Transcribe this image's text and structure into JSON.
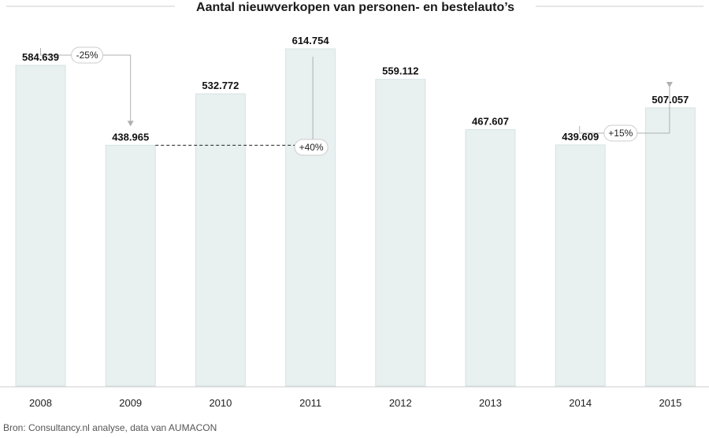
{
  "chart_data": {
    "type": "bar",
    "title": "Aantal nieuwverkopen van personen- en bestelauto’s",
    "categories": [
      "2008",
      "2009",
      "2010",
      "2011",
      "2012",
      "2013",
      "2014",
      "2015"
    ],
    "values": [
      584639,
      438965,
      532772,
      614754,
      559112,
      467607,
      439609,
      507057
    ],
    "value_labels": [
      "584.639",
      "438.965",
      "532.772",
      "614.754",
      "559.112",
      "467.607",
      "439.609",
      "507.057"
    ],
    "ylim": [
      0,
      620000
    ],
    "grid": false,
    "annotations": [
      {
        "text": "-25%",
        "from": "2008",
        "to": "2009"
      },
      {
        "text": "+40%",
        "from": "2009",
        "to": "2011"
      },
      {
        "text": "+15%",
        "from": "2014",
        "to": "2015"
      }
    ],
    "colors": {
      "bar": "#e8f0f0",
      "bar_edge": "#d6e3e3",
      "arrow": "#b0b0b0",
      "dashed": "#222222",
      "rule": "#cccccc"
    }
  },
  "source": "Bron: Consultancy.nl analyse, data van AUMACON"
}
